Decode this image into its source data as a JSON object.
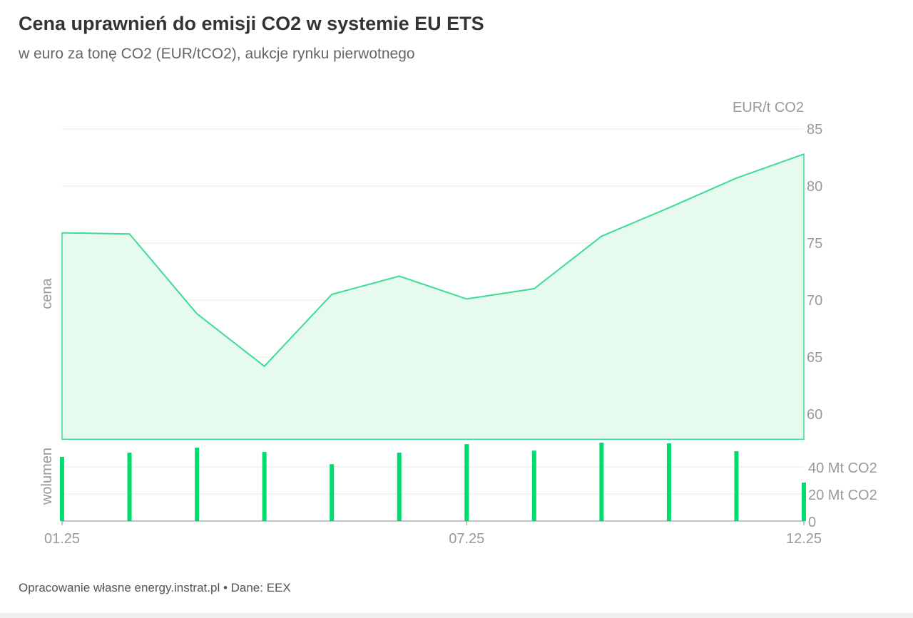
{
  "header": {
    "title": "Cena uprawnień do emisji CO2 w systemie EU ETS",
    "subtitle": "w euro za tonę CO2 (EUR/tCO2), aukcje rynku pierwotnego"
  },
  "footer": {
    "source": "Opracowanie własne energy.instrat.pl • Dane: EEX"
  },
  "colors": {
    "line": "#3ddc97",
    "area": "#e6fbee",
    "bar": "#00dd6f",
    "grid": "#e8e8e8"
  },
  "chart_data": {
    "type": "area+bar",
    "x": [
      "01.25",
      "02.25",
      "03.25",
      "04.25",
      "05.25",
      "06.25",
      "07.25",
      "08.25",
      "09.25",
      "10.25",
      "11.25",
      "12.25"
    ],
    "x_tick_labels": [
      "01.25",
      "07.25",
      "12.25"
    ],
    "price": {
      "axis_label": "cena",
      "unit_label": "EUR/t CO2",
      "y_ticks": [
        "60",
        "65",
        "70",
        "75",
        "80",
        "85"
      ],
      "ylim": [
        57.8,
        85
      ],
      "values": [
        75.9,
        75.8,
        68.8,
        64.2,
        70.5,
        72.1,
        70.1,
        71.0,
        75.6,
        78.1,
        80.7,
        82.8
      ]
    },
    "volume": {
      "axis_label": "wolumen",
      "y_ticks": [
        "0",
        "20 Mt CO2",
        "40 Mt CO2"
      ],
      "ylim": [
        0,
        60
      ],
      "values": [
        47.4,
        50.5,
        54.2,
        51.0,
        42.0,
        50.5,
        56.8,
        52.0,
        57.9,
        57.4,
        51.6,
        28.4
      ]
    },
    "grid": true,
    "legend": "none"
  }
}
